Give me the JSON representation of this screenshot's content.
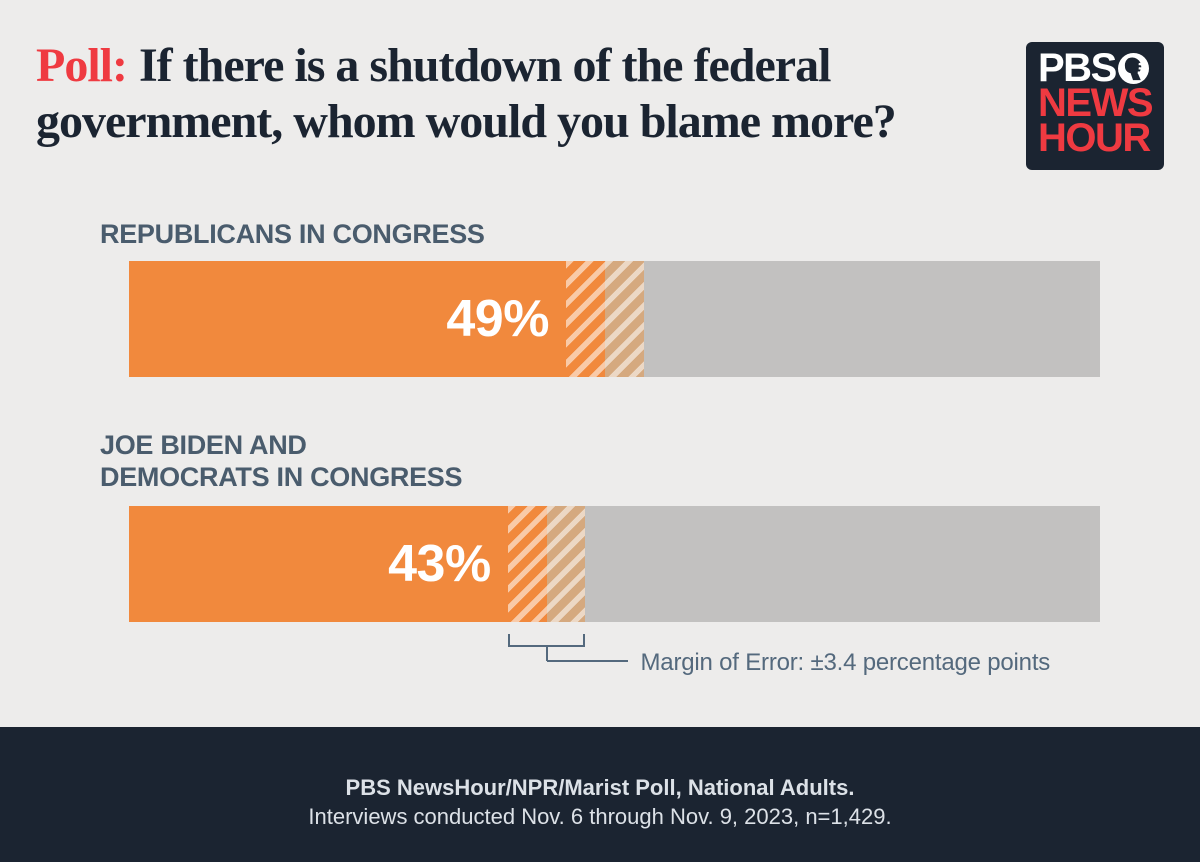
{
  "title": {
    "prefix": "Poll:",
    "line1": "If there is a shutdown of the federal",
    "line2": "government, whom would you blame more?"
  },
  "logo": {
    "pbs": "PBS",
    "news": "NEWS",
    "hour": "HOUR"
  },
  "chart_data": {
    "type": "bar",
    "orientation": "horizontal",
    "categories": [
      "Republicans in Congress",
      "Joe Biden and Democrats in Congress"
    ],
    "values": [
      49,
      43
    ],
    "unit": "percent",
    "xlim": [
      0,
      100
    ],
    "margin_of_error_points": 3.4,
    "moe_band_visual_pct": 4,
    "annotation": "Margin of Error: ±3.4 percentage points",
    "grid": false,
    "legend": "none",
    "title": "Poll: If there is a shutdown of the federal government, whom would you blame more?"
  },
  "bars": [
    {
      "label": "REPUBLICANS IN CONGRESS",
      "value_label": "49%"
    },
    {
      "label": "JOE BIDEN AND\nDEMOCRATS IN CONGRESS",
      "value_label": "43%"
    }
  ],
  "annotation": {
    "moe_text": "Margin of Error: ±3.4 percentage points"
  },
  "footer": {
    "line1": "PBS NewsHour/NPR/Marist Poll, National Adults.",
    "line2": "Interviews conducted Nov. 6 through Nov. 9, 2023, n=1,429."
  },
  "colors": {
    "accent_orange": "#F1893D",
    "track_gray": "#C2C1C0",
    "navy": "#1B2431",
    "red": "#EF3A41",
    "label_slate": "#4A5C6D",
    "moe_slate": "#54697D",
    "background": "#EDECEB",
    "footer_text": "#DCE1E7"
  }
}
